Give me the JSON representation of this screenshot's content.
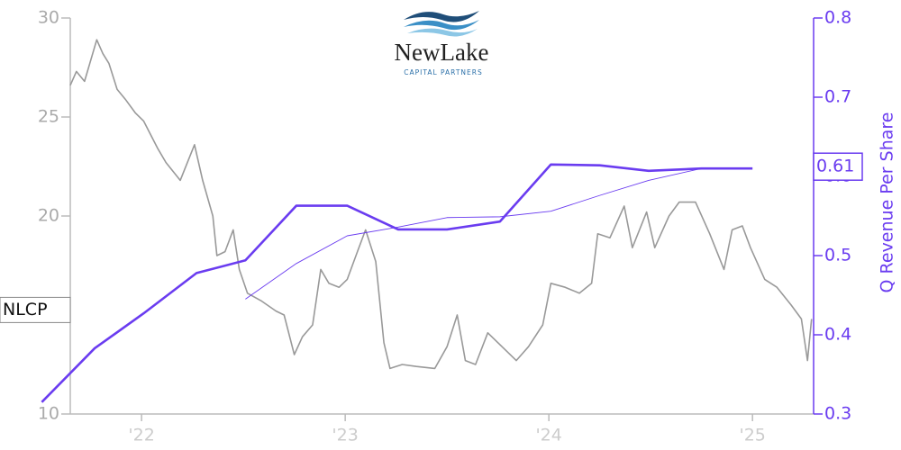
{
  "logo": {
    "name": "NewLake",
    "tagline": "CAPITAL PARTNERS"
  },
  "chart_data": {
    "type": "line",
    "y2label": "Q Revenue Per Share",
    "xlim": [
      2021.65,
      2025.3
    ],
    "xticks": [
      {
        "value": 2022,
        "label": "'22"
      },
      {
        "value": 2023,
        "label": "'23"
      },
      {
        "value": 2024,
        "label": "'24"
      },
      {
        "value": 2025,
        "label": "'25"
      }
    ],
    "ylim": [
      10,
      30
    ],
    "yticks": [
      10,
      15,
      20,
      25,
      30
    ],
    "y2lim": [
      0.3,
      0.8
    ],
    "y2ticks": [
      0.3,
      0.4,
      0.5,
      0.6,
      0.7,
      0.8
    ],
    "series": [
      {
        "name": "NLCP",
        "color": "#999999",
        "axis": "y",
        "line_width": 1.6,
        "x": [
          2021.65,
          2021.68,
          2021.72,
          2021.78,
          2021.81,
          2021.84,
          2021.88,
          2021.92,
          2021.97,
          2022.01,
          2022.08,
          2022.12,
          2022.19,
          2022.26,
          2022.3,
          2022.35,
          2022.37,
          2022.41,
          2022.45,
          2022.48,
          2022.52,
          2022.59,
          2022.66,
          2022.7,
          2022.75,
          2022.79,
          2022.84,
          2022.88,
          2022.92,
          2022.97,
          2023.01,
          2023.06,
          2023.1,
          2023.15,
          2023.19,
          2023.22,
          2023.28,
          2023.35,
          2023.44,
          2023.5,
          2023.55,
          2023.59,
          2023.64,
          2023.7,
          2023.77,
          2023.84,
          2023.9,
          2023.97,
          2024.01,
          2024.08,
          2024.15,
          2024.21,
          2024.24,
          2024.3,
          2024.37,
          2024.41,
          2024.48,
          2024.52,
          2024.59,
          2024.64,
          2024.72,
          2024.79,
          2024.86,
          2024.9,
          2024.95,
          2024.99,
          2025.06,
          2025.12,
          2025.19,
          2025.24,
          2025.27,
          2025.29
        ],
        "values": [
          26.6,
          27.3,
          26.8,
          28.9,
          28.2,
          27.7,
          26.4,
          25.9,
          25.2,
          24.8,
          23.4,
          22.7,
          21.8,
          23.6,
          21.8,
          20,
          18,
          18.2,
          19.3,
          17.3,
          16.1,
          15.7,
          15.2,
          15,
          13,
          13.9,
          14.5,
          17.3,
          16.6,
          16.4,
          16.8,
          18.2,
          19.3,
          17.7,
          13.6,
          12.3,
          12.5,
          12.4,
          12.3,
          13.4,
          15,
          12.7,
          12.5,
          14.1,
          13.4,
          12.7,
          13.4,
          14.5,
          16.6,
          16.4,
          16.1,
          16.6,
          19.1,
          18.9,
          20.5,
          18.4,
          20.2,
          18.4,
          20,
          20.7,
          20.7,
          19.1,
          17.3,
          19.3,
          19.5,
          18.4,
          16.8,
          16.4,
          15.5,
          14.8,
          12.7,
          14.8
        ]
      },
      {
        "color": "#6a3cf0",
        "axis": "y2",
        "line_width": 2.6,
        "x": [
          2021.51,
          2021.77,
          2022.01,
          2022.27,
          2022.51,
          2022.76,
          2023.01,
          2023.26,
          2023.5,
          2023.76,
          2024.01,
          2024.25,
          2024.49,
          2024.75,
          2025.0
        ],
        "values": [
          0.315,
          0.383,
          0.427,
          0.478,
          0.494,
          0.563,
          0.563,
          0.533,
          0.533,
          0.543,
          0.615,
          0.614,
          0.607,
          0.61,
          0.61
        ]
      },
      {
        "color": "#6a3cf0",
        "axis": "y2",
        "line_width": 0.9,
        "x": [
          2022.51,
          2022.76,
          2023.01,
          2023.26,
          2023.5,
          2023.76,
          2024.01,
          2024.25,
          2024.49,
          2024.75
        ],
        "values": [
          0.445,
          0.49,
          0.525,
          0.536,
          0.548,
          0.549,
          0.556,
          0.576,
          0.595,
          0.61
        ]
      }
    ]
  }
}
